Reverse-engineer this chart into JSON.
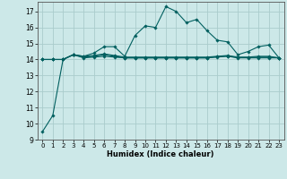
{
  "title": "",
  "xlabel": "Humidex (Indice chaleur)",
  "ylabel": "",
  "xlim": [
    -0.5,
    23.5
  ],
  "ylim": [
    9,
    17.6
  ],
  "yticks": [
    9,
    10,
    11,
    12,
    13,
    14,
    15,
    16,
    17
  ],
  "xticks": [
    0,
    1,
    2,
    3,
    4,
    5,
    6,
    7,
    8,
    9,
    10,
    11,
    12,
    13,
    14,
    15,
    16,
    17,
    18,
    19,
    20,
    21,
    22,
    23
  ],
  "bg_color": "#cce8e8",
  "grid_color": "#aacccc",
  "line_color": "#005f5f",
  "line_width": 0.8,
  "marker": "D",
  "marker_size": 1.8,
  "curves": [
    {
      "x": [
        0,
        1,
        2,
        3,
        4,
        5,
        6,
        7,
        8,
        9,
        10,
        11,
        12,
        13,
        14,
        15,
        16,
        17,
        18,
        19,
        20,
        21,
        22,
        23
      ],
      "y": [
        9.5,
        10.5,
        14.0,
        14.3,
        14.2,
        14.4,
        14.8,
        14.8,
        14.2,
        15.5,
        16.1,
        16.0,
        17.3,
        17.0,
        16.3,
        16.5,
        15.8,
        15.2,
        15.1,
        14.3,
        14.5,
        14.8,
        14.9,
        14.1
      ]
    },
    {
      "x": [
        0,
        1,
        2,
        3,
        4,
        5,
        6,
        7,
        8,
        9,
        10,
        11,
        12,
        13,
        14,
        15,
        16,
        17,
        18,
        19,
        20,
        21,
        22,
        23
      ],
      "y": [
        14.0,
        14.0,
        14.0,
        14.3,
        14.1,
        14.15,
        14.2,
        14.15,
        14.1,
        14.1,
        14.1,
        14.1,
        14.1,
        14.1,
        14.1,
        14.1,
        14.1,
        14.15,
        14.2,
        14.1,
        14.1,
        14.1,
        14.1,
        14.1
      ]
    },
    {
      "x": [
        0,
        1,
        2,
        3,
        4,
        5,
        6,
        7,
        8,
        9,
        10,
        11,
        12,
        13,
        14,
        15,
        16,
        17,
        18,
        19,
        20,
        21,
        22,
        23
      ],
      "y": [
        14.0,
        14.0,
        14.0,
        14.3,
        14.2,
        14.25,
        14.35,
        14.25,
        14.15,
        14.15,
        14.15,
        14.15,
        14.15,
        14.15,
        14.15,
        14.15,
        14.15,
        14.2,
        14.25,
        14.15,
        14.15,
        14.2,
        14.2,
        14.1
      ]
    },
    {
      "x": [
        0,
        1,
        2,
        3,
        4,
        5,
        6,
        7,
        8,
        9,
        10,
        11,
        12,
        13,
        14,
        15,
        16,
        17,
        18,
        19,
        20,
        21,
        22,
        23
      ],
      "y": [
        14.0,
        14.0,
        14.0,
        14.3,
        14.15,
        14.2,
        14.3,
        14.2,
        14.1,
        14.1,
        14.1,
        14.1,
        14.1,
        14.1,
        14.1,
        14.1,
        14.1,
        14.18,
        14.22,
        14.12,
        14.12,
        14.15,
        14.15,
        14.1
      ]
    }
  ]
}
